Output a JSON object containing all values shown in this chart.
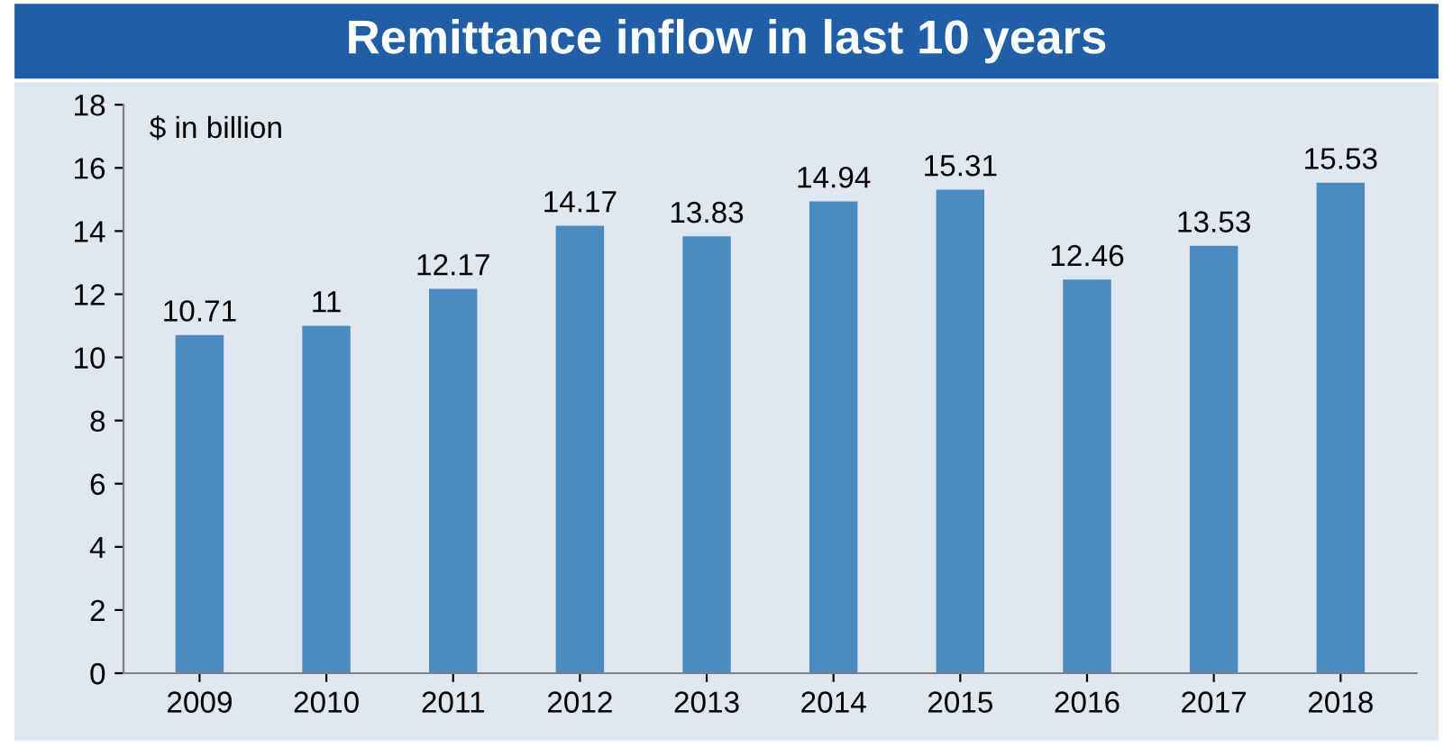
{
  "chart_data": {
    "type": "bar",
    "title": "Remittance inflow in last 10 years",
    "annotations": [
      "$ in billion"
    ],
    "categories": [
      "2009",
      "2010",
      "2011",
      "2012",
      "2013",
      "2014",
      "2015",
      "2016",
      "2017",
      "2018"
    ],
    "values": [
      10.71,
      11,
      12.17,
      14.17,
      13.83,
      14.94,
      15.31,
      12.46,
      13.53,
      15.53
    ],
    "color": "#4a8cc2",
    "data_labels": true,
    "ylim": [
      0,
      18
    ],
    "yticks": [
      0,
      2,
      4,
      6,
      8,
      10,
      12,
      14,
      16,
      18
    ],
    "grid": false,
    "legend": false
  }
}
